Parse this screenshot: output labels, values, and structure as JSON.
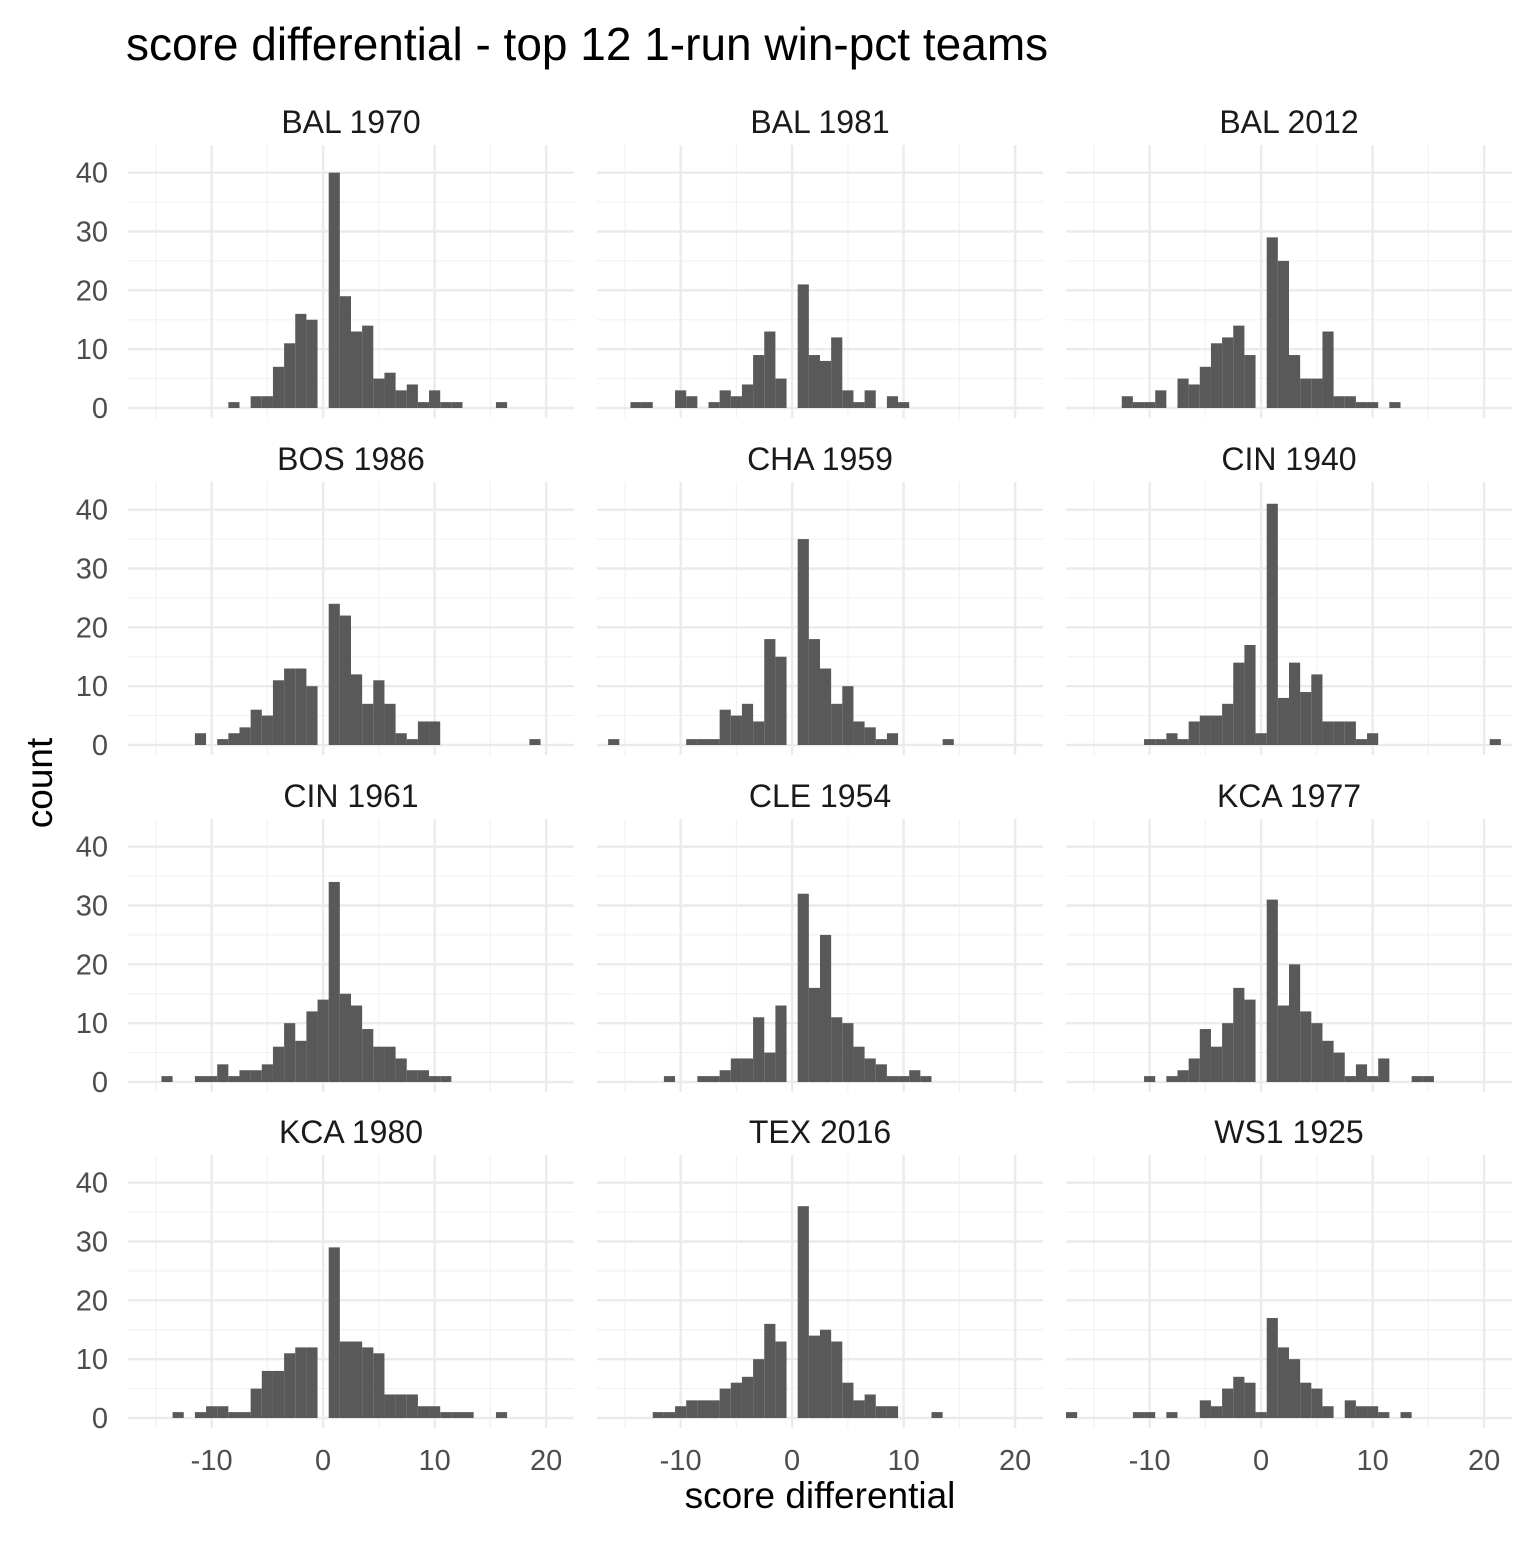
{
  "chart_data": {
    "type": "bar",
    "subtype": "faceted-histogram",
    "title": "score differential - top 12 1-run win-pct teams",
    "xlabel": "score differential",
    "ylabel": "count",
    "xlim": [
      -17.5,
      22.5
    ],
    "ylim": [
      0,
      43
    ],
    "x_ticks": [
      -10,
      0,
      10,
      20
    ],
    "x_tick_labels": [
      "-10",
      "0",
      "10",
      "20"
    ],
    "y_ticks": [
      0,
      10,
      20,
      30,
      40
    ],
    "y_tick_labels": [
      "0",
      "10",
      "20",
      "30",
      "40"
    ],
    "grid": true,
    "bar_color": "#595959",
    "bin_width": 1,
    "layout": {
      "rows": 4,
      "cols": 3
    },
    "panels": [
      {
        "label": "BAL 1970",
        "bins": [
          [
            -8,
            1
          ],
          [
            -6,
            2
          ],
          [
            -5,
            2
          ],
          [
            -4,
            7
          ],
          [
            -3,
            11
          ],
          [
            -2,
            16
          ],
          [
            -1,
            15
          ],
          [
            1,
            40
          ],
          [
            2,
            19
          ],
          [
            3,
            13
          ],
          [
            4,
            14
          ],
          [
            5,
            5
          ],
          [
            6,
            6
          ],
          [
            7,
            3
          ],
          [
            8,
            4
          ],
          [
            9,
            1
          ],
          [
            10,
            3
          ],
          [
            11,
            1
          ],
          [
            12,
            1
          ],
          [
            16,
            1
          ]
        ]
      },
      {
        "label": "BAL 1981",
        "bins": [
          [
            -14,
            1
          ],
          [
            -13,
            1
          ],
          [
            -10,
            3
          ],
          [
            -9,
            2
          ],
          [
            -7,
            1
          ],
          [
            -6,
            3
          ],
          [
            -5,
            2
          ],
          [
            -4,
            4
          ],
          [
            -3,
            9
          ],
          [
            -2,
            13
          ],
          [
            -1,
            5
          ],
          [
            1,
            21
          ],
          [
            2,
            9
          ],
          [
            3,
            8
          ],
          [
            4,
            12
          ],
          [
            5,
            3
          ],
          [
            6,
            1
          ],
          [
            7,
            3
          ],
          [
            9,
            2
          ],
          [
            10,
            1
          ]
        ]
      },
      {
        "label": "BAL 2012",
        "bins": [
          [
            -12,
            2
          ],
          [
            -11,
            1
          ],
          [
            -10,
            1
          ],
          [
            -9,
            3
          ],
          [
            -7,
            5
          ],
          [
            -6,
            4
          ],
          [
            -5,
            7
          ],
          [
            -4,
            11
          ],
          [
            -3,
            12
          ],
          [
            -2,
            14
          ],
          [
            -1,
            9
          ],
          [
            1,
            29
          ],
          [
            2,
            25
          ],
          [
            3,
            9
          ],
          [
            4,
            5
          ],
          [
            5,
            5
          ],
          [
            6,
            13
          ],
          [
            7,
            2
          ],
          [
            8,
            2
          ],
          [
            9,
            1
          ],
          [
            10,
            1
          ],
          [
            12,
            1
          ]
        ]
      },
      {
        "label": "BOS 1986",
        "bins": [
          [
            -11,
            2
          ],
          [
            -9,
            1
          ],
          [
            -8,
            2
          ],
          [
            -7,
            3
          ],
          [
            -6,
            6
          ],
          [
            -5,
            5
          ],
          [
            -4,
            11
          ],
          [
            -3,
            13
          ],
          [
            -2,
            13
          ],
          [
            -1,
            10
          ],
          [
            1,
            24
          ],
          [
            2,
            22
          ],
          [
            3,
            12
          ],
          [
            4,
            7
          ],
          [
            5,
            11
          ],
          [
            6,
            7
          ],
          [
            7,
            2
          ],
          [
            8,
            1
          ],
          [
            9,
            4
          ],
          [
            10,
            4
          ],
          [
            19,
            1
          ]
        ]
      },
      {
        "label": "CHA 1959",
        "bins": [
          [
            -16,
            1
          ],
          [
            -9,
            1
          ],
          [
            -8,
            1
          ],
          [
            -7,
            1
          ],
          [
            -6,
            6
          ],
          [
            -5,
            5
          ],
          [
            -4,
            7
          ],
          [
            -3,
            4
          ],
          [
            -2,
            18
          ],
          [
            -1,
            15
          ],
          [
            1,
            35
          ],
          [
            2,
            18
          ],
          [
            3,
            13
          ],
          [
            4,
            7
          ],
          [
            5,
            10
          ],
          [
            6,
            4
          ],
          [
            7,
            3
          ],
          [
            8,
            1
          ],
          [
            9,
            2
          ],
          [
            14,
            1
          ]
        ]
      },
      {
        "label": "CIN 1940",
        "bins": [
          [
            -10,
            1
          ],
          [
            -9,
            1
          ],
          [
            -8,
            2
          ],
          [
            -7,
            1
          ],
          [
            -6,
            4
          ],
          [
            -5,
            5
          ],
          [
            -4,
            5
          ],
          [
            -3,
            7
          ],
          [
            -2,
            14
          ],
          [
            -1,
            17
          ],
          [
            0,
            2
          ],
          [
            1,
            41
          ],
          [
            2,
            8
          ],
          [
            3,
            14
          ],
          [
            4,
            9
          ],
          [
            5,
            12
          ],
          [
            6,
            4
          ],
          [
            7,
            4
          ],
          [
            8,
            4
          ],
          [
            9,
            1
          ],
          [
            10,
            2
          ],
          [
            21,
            1
          ]
        ]
      },
      {
        "label": "CIN 1961",
        "bins": [
          [
            -14,
            1
          ],
          [
            -11,
            1
          ],
          [
            -10,
            1
          ],
          [
            -9,
            3
          ],
          [
            -8,
            1
          ],
          [
            -7,
            2
          ],
          [
            -6,
            2
          ],
          [
            -5,
            3
          ],
          [
            -4,
            6
          ],
          [
            -3,
            10
          ],
          [
            -2,
            7
          ],
          [
            -1,
            12
          ],
          [
            0,
            14
          ],
          [
            1,
            34
          ],
          [
            2,
            15
          ],
          [
            3,
            13
          ],
          [
            4,
            9
          ],
          [
            5,
            6
          ],
          [
            6,
            6
          ],
          [
            7,
            4
          ],
          [
            8,
            2
          ],
          [
            9,
            2
          ],
          [
            10,
            1
          ],
          [
            11,
            1
          ]
        ]
      },
      {
        "label": "CLE 1954",
        "bins": [
          [
            -11,
            1
          ],
          [
            -8,
            1
          ],
          [
            -7,
            1
          ],
          [
            -6,
            2
          ],
          [
            -5,
            4
          ],
          [
            -4,
            4
          ],
          [
            -3,
            11
          ],
          [
            -2,
            5
          ],
          [
            -1,
            13
          ],
          [
            1,
            32
          ],
          [
            2,
            16
          ],
          [
            3,
            25
          ],
          [
            4,
            11
          ],
          [
            5,
            10
          ],
          [
            6,
            6
          ],
          [
            7,
            4
          ],
          [
            8,
            3
          ],
          [
            9,
            1
          ],
          [
            10,
            1
          ],
          [
            11,
            2
          ],
          [
            12,
            1
          ]
        ]
      },
      {
        "label": "KCA 1977",
        "bins": [
          [
            -10,
            1
          ],
          [
            -8,
            1
          ],
          [
            -7,
            2
          ],
          [
            -6,
            4
          ],
          [
            -5,
            9
          ],
          [
            -4,
            6
          ],
          [
            -3,
            10
          ],
          [
            -2,
            16
          ],
          [
            -1,
            14
          ],
          [
            1,
            31
          ],
          [
            2,
            13
          ],
          [
            3,
            20
          ],
          [
            4,
            12
          ],
          [
            5,
            10
          ],
          [
            6,
            7
          ],
          [
            7,
            5
          ],
          [
            8,
            1
          ],
          [
            9,
            3
          ],
          [
            10,
            1
          ],
          [
            11,
            4
          ],
          [
            14,
            1
          ],
          [
            15,
            1
          ]
        ]
      },
      {
        "label": "KCA 1980",
        "bins": [
          [
            -13,
            1
          ],
          [
            -11,
            1
          ],
          [
            -10,
            2
          ],
          [
            -9,
            2
          ],
          [
            -8,
            1
          ],
          [
            -7,
            1
          ],
          [
            -6,
            5
          ],
          [
            -5,
            8
          ],
          [
            -4,
            8
          ],
          [
            -3,
            11
          ],
          [
            -2,
            12
          ],
          [
            -1,
            12
          ],
          [
            1,
            29
          ],
          [
            2,
            13
          ],
          [
            3,
            13
          ],
          [
            4,
            12
          ],
          [
            5,
            11
          ],
          [
            6,
            4
          ],
          [
            7,
            4
          ],
          [
            8,
            4
          ],
          [
            9,
            2
          ],
          [
            10,
            2
          ],
          [
            11,
            1
          ],
          [
            12,
            1
          ],
          [
            13,
            1
          ],
          [
            16,
            1
          ]
        ]
      },
      {
        "label": "TEX 2016",
        "bins": [
          [
            -12,
            1
          ],
          [
            -11,
            1
          ],
          [
            -10,
            2
          ],
          [
            -9,
            3
          ],
          [
            -8,
            3
          ],
          [
            -7,
            3
          ],
          [
            -6,
            5
          ],
          [
            -5,
            6
          ],
          [
            -4,
            7
          ],
          [
            -3,
            10
          ],
          [
            -2,
            16
          ],
          [
            -1,
            13
          ],
          [
            1,
            36
          ],
          [
            2,
            14
          ],
          [
            3,
            15
          ],
          [
            4,
            13
          ],
          [
            5,
            6
          ],
          [
            6,
            3
          ],
          [
            7,
            4
          ],
          [
            8,
            2
          ],
          [
            9,
            2
          ],
          [
            13,
            1
          ]
        ]
      },
      {
        "label": "WS1 1925",
        "bins": [
          [
            -17,
            1
          ],
          [
            -11,
            1
          ],
          [
            -10,
            1
          ],
          [
            -8,
            1
          ],
          [
            -5,
            3
          ],
          [
            -4,
            2
          ],
          [
            -3,
            5
          ],
          [
            -2,
            7
          ],
          [
            -1,
            6
          ],
          [
            0,
            1
          ],
          [
            1,
            17
          ],
          [
            2,
            12
          ],
          [
            3,
            10
          ],
          [
            4,
            6
          ],
          [
            5,
            5
          ],
          [
            6,
            2
          ],
          [
            8,
            3
          ],
          [
            9,
            2
          ],
          [
            10,
            2
          ],
          [
            11,
            1
          ],
          [
            13,
            1
          ]
        ]
      }
    ]
  }
}
